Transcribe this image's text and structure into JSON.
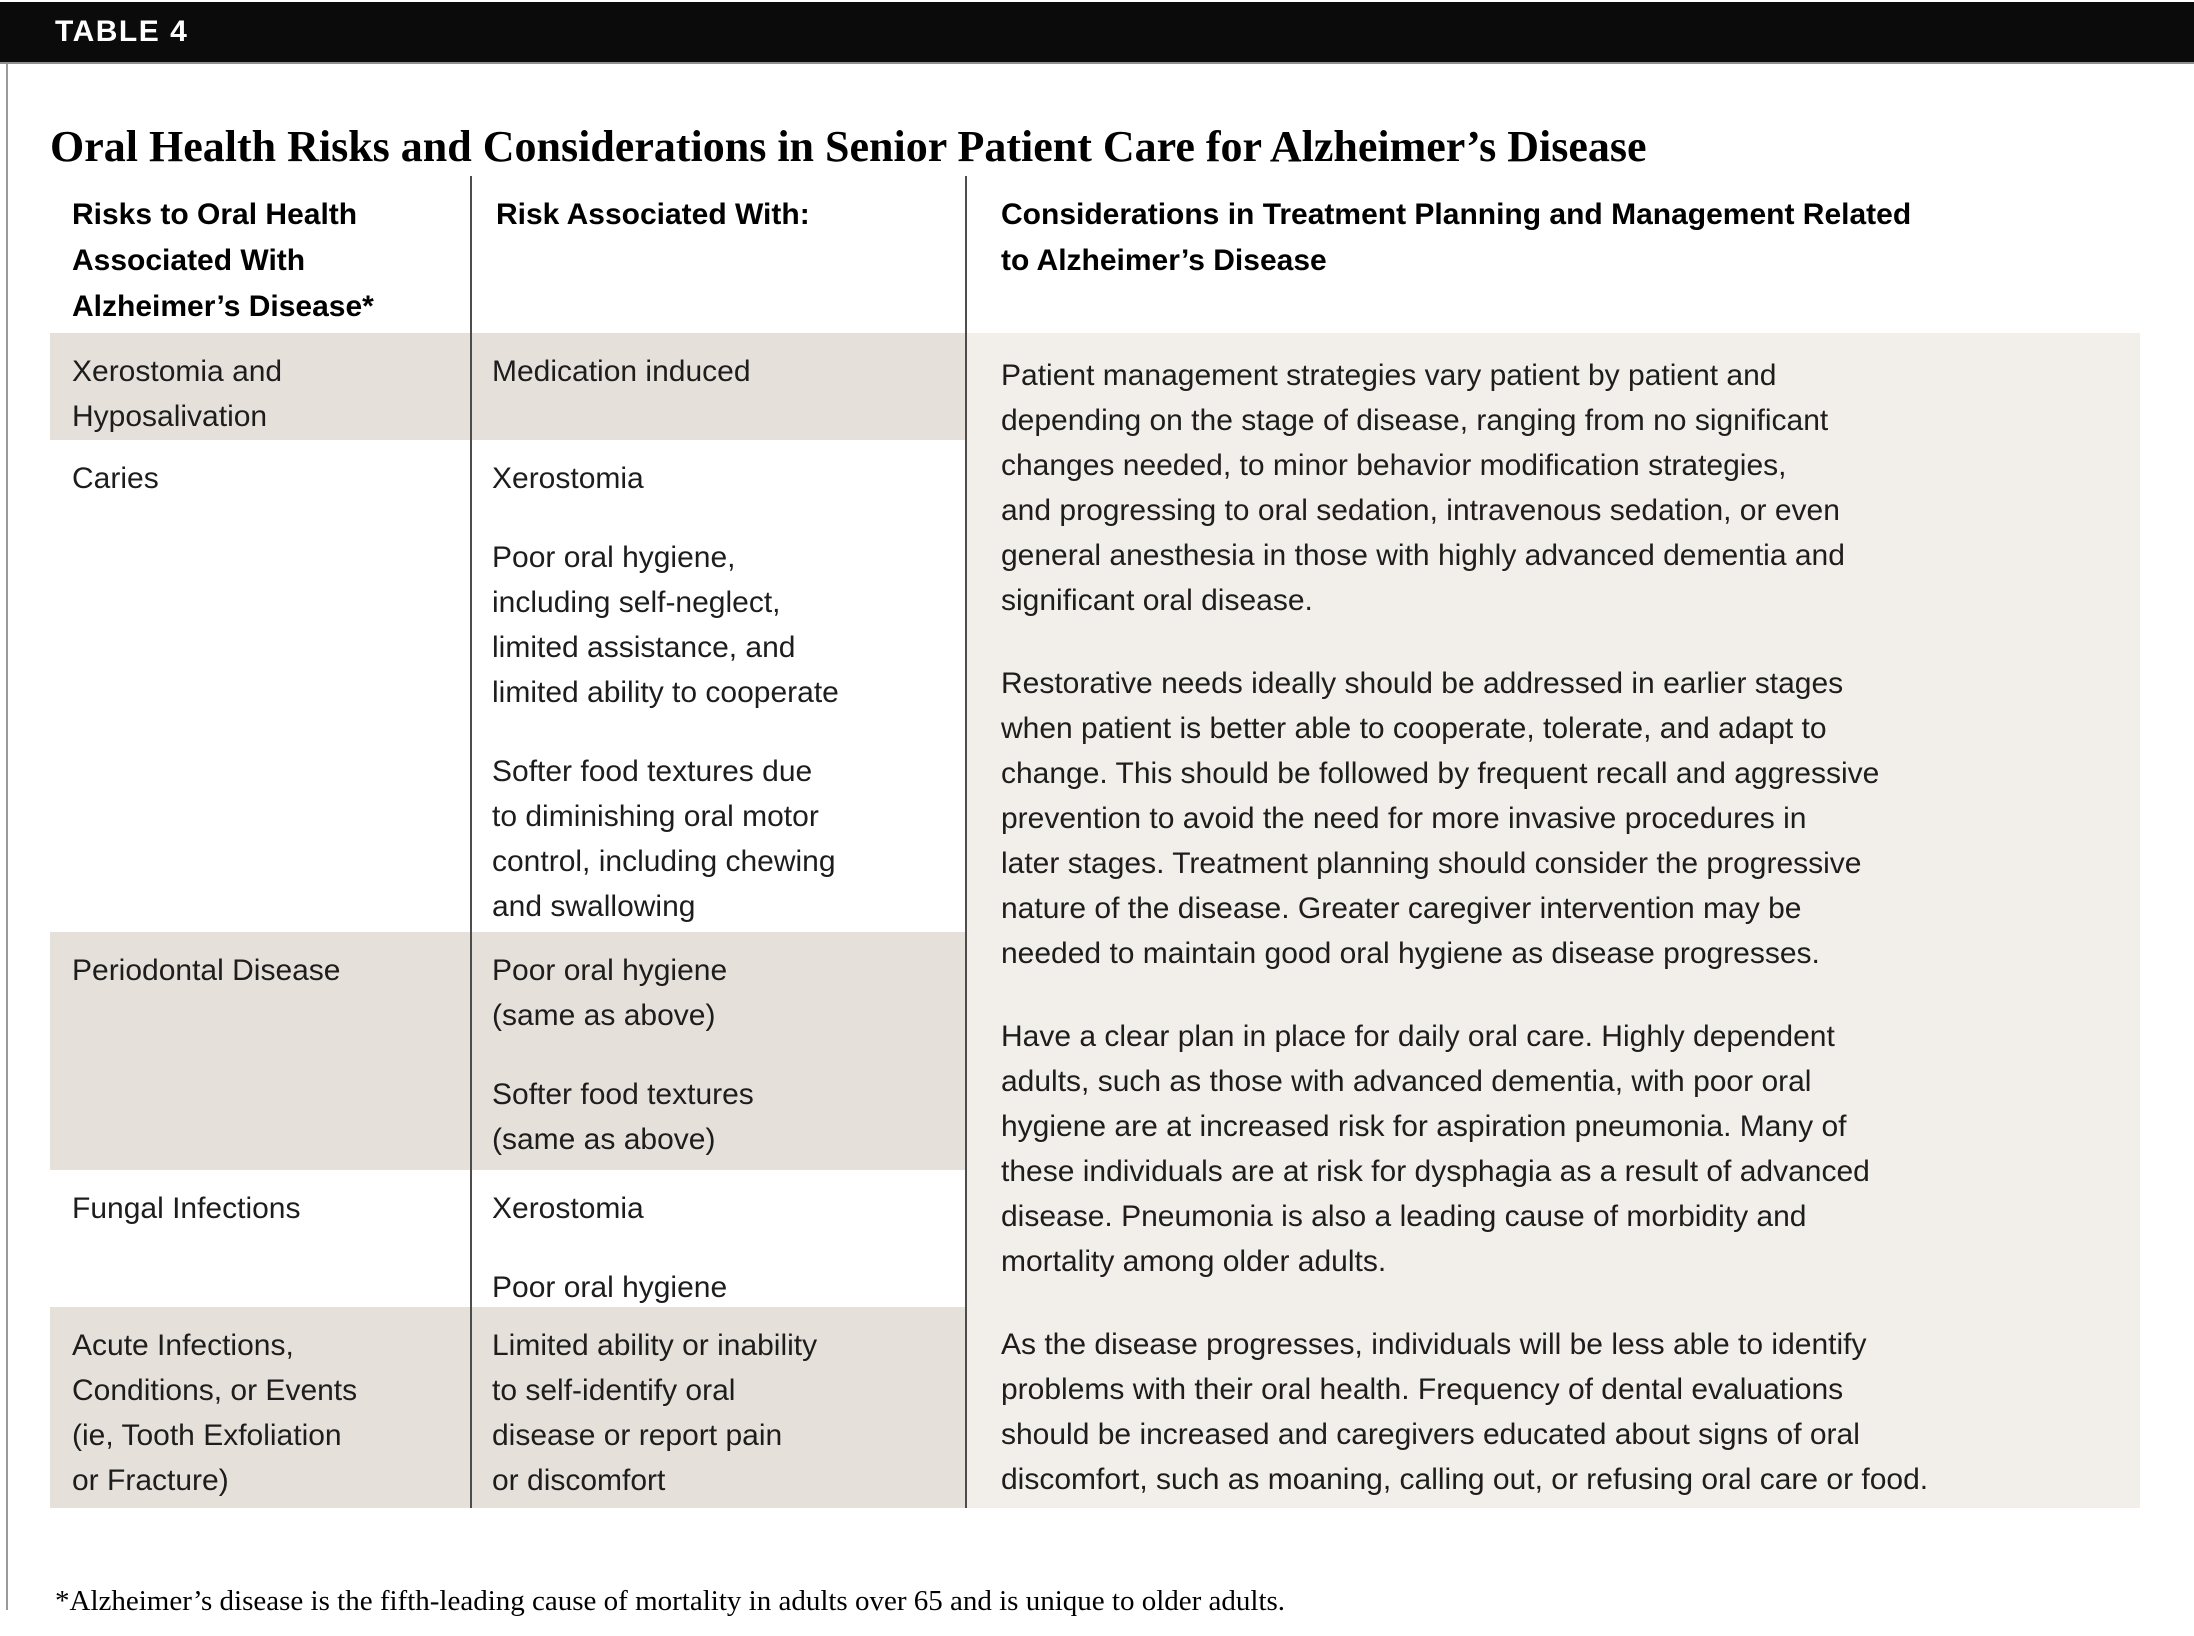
{
  "page": {
    "table_label": "TABLE 4",
    "title": "Oral Health Risks and Considerations in Senior Patient Care for Alzheimer’s Disease",
    "footnote": "*Alzheimer’s disease is the fifth-leading cause of mortality in adults over 65 and is unique to older adults."
  },
  "colors": {
    "header_bar": "#0b0b0b",
    "row_shade": "#e5e0da",
    "considerations_shade": "#f2eee9",
    "divider": "#4d4d4d",
    "text": "#1d1d1d"
  },
  "table": {
    "headers": [
      {
        "lines": [
          "Risks to Oral Health",
          "Associated With",
          "Alzheimer’s Disease*"
        ]
      },
      {
        "lines": [
          "Risk Associated With:"
        ]
      },
      {
        "lines": [
          "Considerations in Treatment Planning and Management Related",
          "to Alzheimer’s Disease"
        ]
      }
    ],
    "rows": [
      {
        "risk": [
          "Xerostomia and",
          "Hyposalivation"
        ],
        "factors": [
          [
            "Medication induced"
          ]
        ]
      },
      {
        "risk": [
          "Caries"
        ],
        "factors": [
          [
            "Xerostomia"
          ],
          [
            "Poor oral hygiene,",
            "including self-neglect,",
            "limited assistance, and",
            "limited ability to cooperate"
          ],
          [
            "Softer food textures due",
            "to diminishing oral motor",
            "control, including chewing",
            "and swallowing"
          ]
        ]
      },
      {
        "risk": [
          "Periodontal Disease"
        ],
        "factors": [
          [
            "Poor oral hygiene",
            "(same as above)"
          ],
          [
            "Softer food textures",
            "(same as above)"
          ]
        ]
      },
      {
        "risk": [
          "Fungal Infections"
        ],
        "factors": [
          [
            "Xerostomia"
          ],
          [
            "Poor oral hygiene"
          ]
        ]
      },
      {
        "risk": [
          "Acute Infections,",
          "Conditions, or Events",
          "(ie, Tooth Exfoliation",
          "or Fracture)"
        ],
        "factors": [
          [
            "Limited ability or inability",
            "to self-identify oral",
            "disease or report pain",
            "or discomfort"
          ]
        ]
      }
    ],
    "considerations": {
      "paragraphs": [
        [
          "Patient management strategies vary patient by patient and",
          "depending on the stage of disease, ranging from no significant",
          "changes needed, to minor behavior modification strategies,",
          "and progressing to oral sedation, intravenous sedation, or even",
          "general anesthesia in those with highly advanced dementia and",
          "significant oral disease."
        ],
        [
          "Restorative needs ideally should be addressed in earlier stages",
          "when patient is better able to cooperate, tolerate, and adapt to",
          "change. This should be followed by frequent recall and aggressive",
          "prevention to avoid the need for more invasive procedures in",
          "later stages. Treatment planning should consider the progressive",
          "nature of the disease. Greater caregiver intervention may be",
          "needed to maintain good oral hygiene as disease progresses."
        ],
        [
          "Have a clear plan in place for daily oral care. Highly dependent",
          "adults, such as those with advanced dementia, with poor oral",
          "hygiene are at increased risk for aspiration pneumonia. Many of",
          "these individuals are at risk for dysphagia as a result of advanced",
          "disease. Pneumonia is also a leading cause of morbidity and",
          "mortality among older adults."
        ],
        [
          "As the disease progresses, individuals will be less able to identify",
          "problems with their oral health. Frequency of dental evaluations",
          "should be increased and caregivers educated about signs of oral",
          "discomfort, such as moaning, calling out, or refusing oral care or food."
        ]
      ]
    }
  }
}
